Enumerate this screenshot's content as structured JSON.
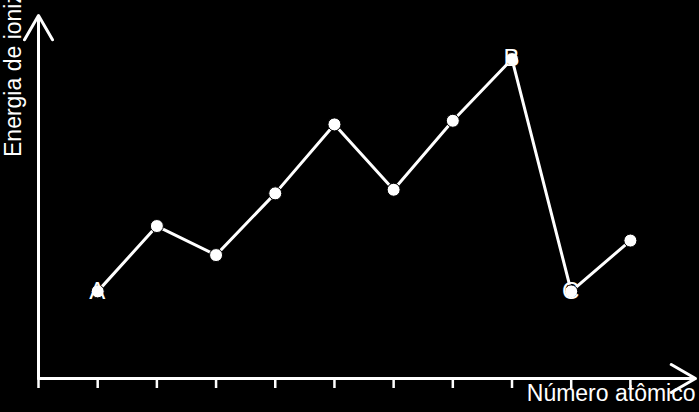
{
  "chart_data": {
    "type": "line",
    "x_label": "Número atômico",
    "y_label": "Energia de ionização",
    "x": [
      1,
      2,
      3,
      4,
      5,
      6,
      7,
      8,
      9,
      10
    ],
    "values": [
      24,
      42,
      34,
      51,
      70,
      52,
      71,
      88,
      24,
      38
    ],
    "color": "#ffffff",
    "marker": "circle",
    "xlim": [
      0,
      11.1
    ],
    "ylim": [
      0,
      100
    ],
    "xticks": [
      0,
      1,
      2,
      3,
      4,
      5,
      6,
      7,
      8,
      9,
      10
    ],
    "yticks": [],
    "tick_labels": false,
    "grid": false,
    "annotations": [
      {
        "text": "A",
        "x": 1,
        "y": 24
      },
      {
        "text": "B",
        "x": 8,
        "y": 88
      },
      {
        "text": "C",
        "x": 9,
        "y": 24
      }
    ]
  }
}
